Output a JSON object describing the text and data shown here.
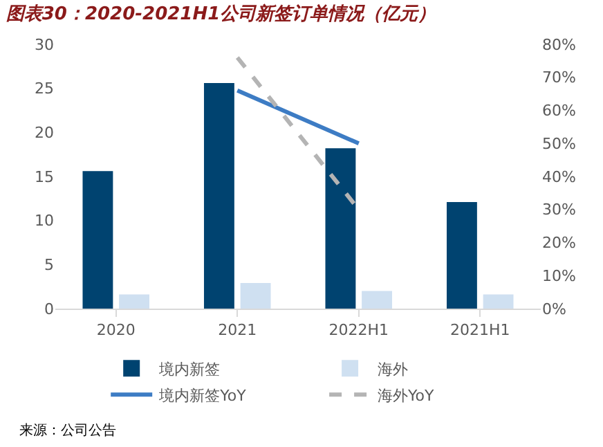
{
  "chart_data": {
    "type": "bar",
    "title": "图表30：2020-2021H1公司新签订单情况（亿元）",
    "categories": [
      "2020",
      "2021",
      "2022H1",
      "2021H1"
    ],
    "series": [
      {
        "name": "境内新签",
        "color": "#004370",
        "values": [
          15.6,
          25.6,
          18.2,
          12.1
        ]
      },
      {
        "name": "海外",
        "color": "#cfe0f1",
        "values": [
          1.6,
          2.9,
          2.0,
          1.6
        ]
      },
      {
        "name": "境内新签YoY",
        "type": "line",
        "axis": "y2",
        "color": "#3d7cc4",
        "line_style": "solid",
        "values": [
          null,
          66,
          50,
          null
        ]
      },
      {
        "name": "海外YoY",
        "type": "line",
        "axis": "y2",
        "color": "#b4b4b4",
        "line_style": "dashed",
        "values": [
          null,
          76,
          30,
          null
        ]
      }
    ],
    "ylim": [
      0,
      30
    ],
    "yticks": [
      0,
      5,
      10,
      15,
      20,
      25,
      30
    ],
    "y2lim": [
      0,
      80
    ],
    "y2ticks": [
      {
        "value": 0,
        "label": "0%"
      },
      {
        "value": 10,
        "label": "10%"
      },
      {
        "value": 20,
        "label": "20%"
      },
      {
        "value": 30,
        "label": "30%"
      },
      {
        "value": 40,
        "label": "40%"
      },
      {
        "value": 50,
        "label": "50%"
      },
      {
        "value": 60,
        "label": "60%"
      },
      {
        "value": 70,
        "label": "70%"
      },
      {
        "value": 80,
        "label": "80%"
      }
    ],
    "legend": "bottom",
    "marker": "none",
    "annotations": [
      "来源：公司公告"
    ]
  }
}
